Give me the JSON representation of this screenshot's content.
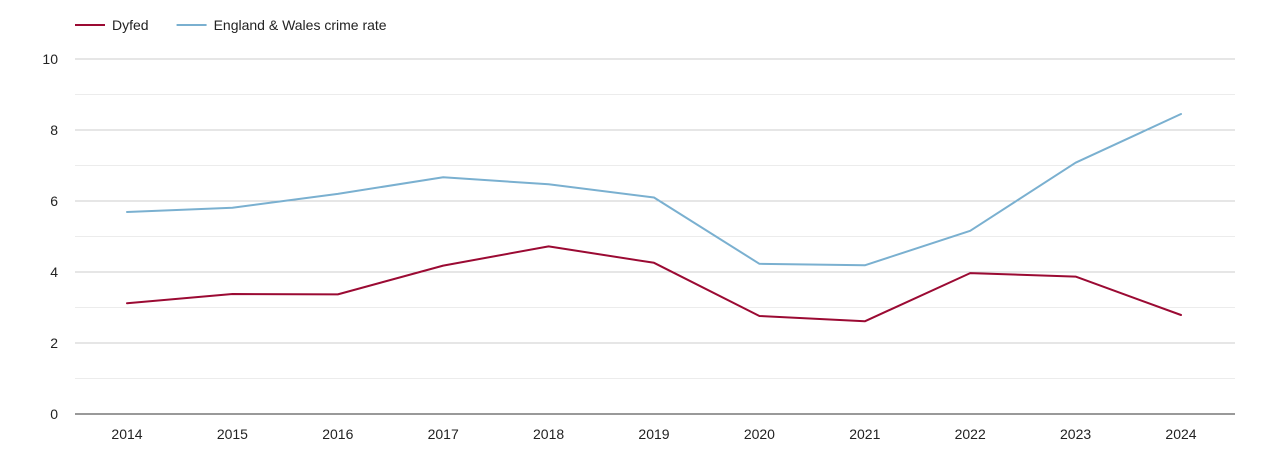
{
  "chart_data": {
    "type": "line",
    "title": "",
    "xlabel": "",
    "ylabel": "",
    "x": [
      "2014",
      "2015",
      "2016",
      "2017",
      "2018",
      "2019",
      "2020",
      "2021",
      "2022",
      "2023",
      "2024"
    ],
    "ylim": [
      0,
      10
    ],
    "yticks": [
      0,
      2,
      4,
      6,
      8,
      10
    ],
    "grid": true,
    "legend_position": "top-left",
    "series": [
      {
        "name": "Dyfed",
        "color": "#9b0a33",
        "values": [
          3.12,
          3.38,
          3.37,
          4.18,
          4.72,
          4.26,
          2.76,
          2.61,
          3.97,
          3.87,
          2.79
        ]
      },
      {
        "name": "England & Wales crime rate",
        "color": "#7ab0d0",
        "values": [
          5.69,
          5.81,
          6.2,
          6.67,
          6.47,
          6.1,
          4.23,
          4.19,
          5.16,
          7.08,
          8.45
        ]
      }
    ]
  }
}
